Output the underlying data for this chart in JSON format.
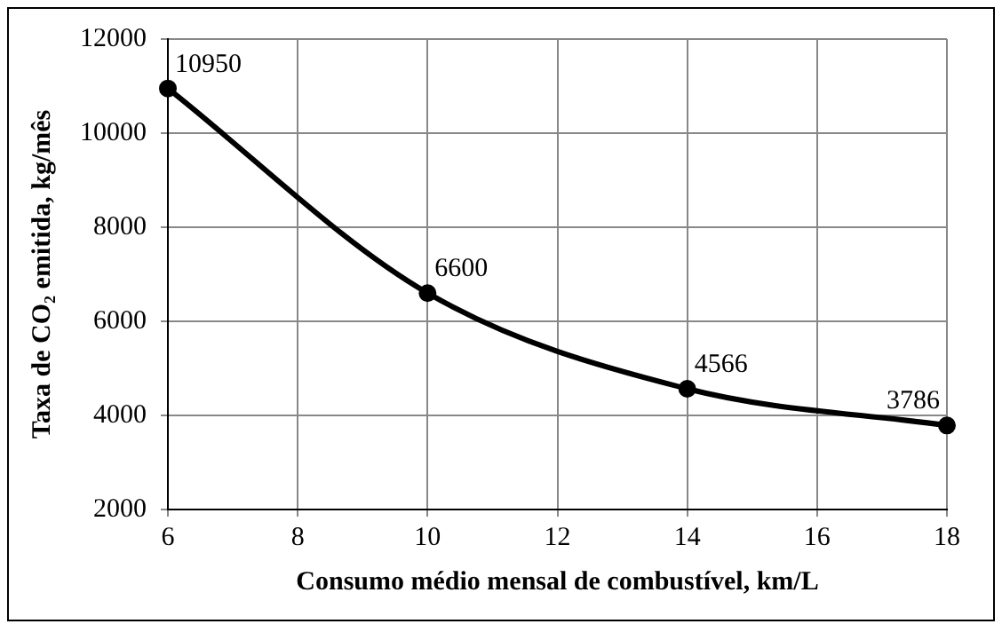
{
  "chart_data": {
    "type": "line",
    "xlabel": "Consumo médio mensal de combustível, km/L",
    "ylabel": "Taxa de CO₂ emitida, kg/mês",
    "x": [
      6,
      10,
      14,
      18
    ],
    "series": [
      {
        "color": "#000000",
        "values": [
          10950,
          6600,
          4566,
          3786
        ]
      }
    ],
    "xlim": [
      6,
      18
    ],
    "xticks": [
      6,
      8,
      10,
      12,
      14,
      16,
      18
    ],
    "ylim": [
      2000,
      12000
    ],
    "yticks": [
      2000,
      4000,
      6000,
      8000,
      10000,
      12000
    ],
    "grid": true,
    "marker": "circle",
    "line_style": "solid",
    "data_labels": true,
    "legend": false
  }
}
